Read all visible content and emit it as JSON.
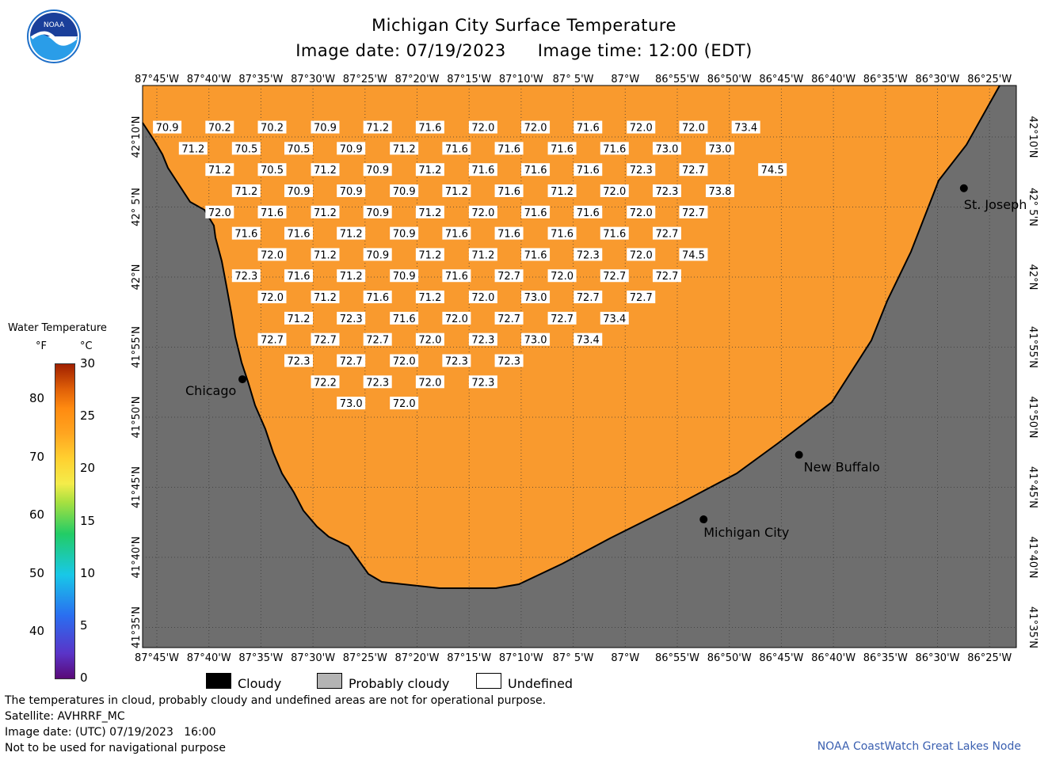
{
  "title": "Michigan City Surface Temperature",
  "image_date": "Image date: 07/19/2023",
  "image_time": "Image time: 12:00 (EDT)",
  "logo_text": "NOAA",
  "colors": {
    "water": "#f99a2e",
    "land": "#6e6e6e",
    "frame": "#000000",
    "cloudy": "#000000",
    "probably_cloudy": "#b4b4b4",
    "undefined": "#ffffff",
    "credit": "#3a5fb0"
  },
  "lon_labels": [
    "87°45'W",
    "87°40'W",
    "87°35'W",
    "87°30'W",
    "87°25'W",
    "87°20'W",
    "87°15'W",
    "87°10'W",
    "87° 5'W",
    "87°W",
    "86°55'W",
    "86°50'W",
    "86°45'W",
    "86°40'W",
    "86°35'W",
    "86°30'W",
    "86°25'W"
  ],
  "lat_labels": [
    "42°10'N",
    "42° 5'N",
    "42°N",
    "41°55'N",
    "41°50'N",
    "41°45'N",
    "41°40'N",
    "41°35'N"
  ],
  "cities": [
    {
      "name": "Chicago",
      "lon": -87.625,
      "lat": 41.883
    },
    {
      "name": "St. Joseph",
      "lon": -86.483,
      "lat": 42.108
    },
    {
      "name": "New Buffalo",
      "lon": -86.744,
      "lat": 41.794
    },
    {
      "name": "Michigan City",
      "lon": -86.895,
      "lat": 41.718
    }
  ],
  "temperatures": [
    {
      "lon": -87.744,
      "lat": 42.18,
      "value": "70.9"
    },
    {
      "lon": -87.661,
      "lat": 42.18,
      "value": "70.2"
    },
    {
      "lon": -87.578,
      "lat": 42.18,
      "value": "70.2"
    },
    {
      "lon": -87.494,
      "lat": 42.18,
      "value": "70.9"
    },
    {
      "lon": -87.411,
      "lat": 42.18,
      "value": "71.2"
    },
    {
      "lon": -87.328,
      "lat": 42.18,
      "value": "71.6"
    },
    {
      "lon": -87.244,
      "lat": 42.18,
      "value": "72.0"
    },
    {
      "lon": -87.161,
      "lat": 42.18,
      "value": "72.0"
    },
    {
      "lon": -87.078,
      "lat": 42.18,
      "value": "71.6"
    },
    {
      "lon": -86.994,
      "lat": 42.18,
      "value": "72.0"
    },
    {
      "lon": -86.911,
      "lat": 42.18,
      "value": "72.0"
    },
    {
      "lon": -86.828,
      "lat": 42.18,
      "value": "73.4"
    },
    {
      "lon": -87.703,
      "lat": 42.155,
      "value": "71.2"
    },
    {
      "lon": -87.619,
      "lat": 42.155,
      "value": "70.5"
    },
    {
      "lon": -87.536,
      "lat": 42.155,
      "value": "70.5"
    },
    {
      "lon": -87.453,
      "lat": 42.155,
      "value": "70.9"
    },
    {
      "lon": -87.369,
      "lat": 42.155,
      "value": "71.2"
    },
    {
      "lon": -87.286,
      "lat": 42.155,
      "value": "71.6"
    },
    {
      "lon": -87.203,
      "lat": 42.155,
      "value": "71.6"
    },
    {
      "lon": -87.119,
      "lat": 42.155,
      "value": "71.6"
    },
    {
      "lon": -87.036,
      "lat": 42.155,
      "value": "71.6"
    },
    {
      "lon": -86.953,
      "lat": 42.155,
      "value": "73.0"
    },
    {
      "lon": -86.869,
      "lat": 42.155,
      "value": "73.0"
    },
    {
      "lon": -87.661,
      "lat": 42.13,
      "value": "71.2"
    },
    {
      "lon": -87.578,
      "lat": 42.13,
      "value": "70.5"
    },
    {
      "lon": -87.494,
      "lat": 42.13,
      "value": "71.2"
    },
    {
      "lon": -87.411,
      "lat": 42.13,
      "value": "70.9"
    },
    {
      "lon": -87.328,
      "lat": 42.13,
      "value": "71.2"
    },
    {
      "lon": -87.244,
      "lat": 42.13,
      "value": "71.6"
    },
    {
      "lon": -87.161,
      "lat": 42.13,
      "value": "71.6"
    },
    {
      "lon": -87.078,
      "lat": 42.13,
      "value": "71.6"
    },
    {
      "lon": -86.994,
      "lat": 42.13,
      "value": "72.3"
    },
    {
      "lon": -86.911,
      "lat": 42.13,
      "value": "72.7"
    },
    {
      "lon": -86.786,
      "lat": 42.13,
      "value": "74.5"
    },
    {
      "lon": -87.619,
      "lat": 42.105,
      "value": "71.2"
    },
    {
      "lon": -87.536,
      "lat": 42.105,
      "value": "70.9"
    },
    {
      "lon": -87.453,
      "lat": 42.105,
      "value": "70.9"
    },
    {
      "lon": -87.369,
      "lat": 42.105,
      "value": "70.9"
    },
    {
      "lon": -87.286,
      "lat": 42.105,
      "value": "71.2"
    },
    {
      "lon": -87.203,
      "lat": 42.105,
      "value": "71.6"
    },
    {
      "lon": -87.119,
      "lat": 42.105,
      "value": "71.2"
    },
    {
      "lon": -87.036,
      "lat": 42.105,
      "value": "72.0"
    },
    {
      "lon": -86.953,
      "lat": 42.105,
      "value": "72.3"
    },
    {
      "lon": -86.869,
      "lat": 42.105,
      "value": "73.8"
    },
    {
      "lon": -87.661,
      "lat": 42.08,
      "value": "72.0"
    },
    {
      "lon": -87.578,
      "lat": 42.08,
      "value": "71.6"
    },
    {
      "lon": -87.494,
      "lat": 42.08,
      "value": "71.2"
    },
    {
      "lon": -87.411,
      "lat": 42.08,
      "value": "70.9"
    },
    {
      "lon": -87.328,
      "lat": 42.08,
      "value": "71.2"
    },
    {
      "lon": -87.244,
      "lat": 42.08,
      "value": "72.0"
    },
    {
      "lon": -87.161,
      "lat": 42.08,
      "value": "71.6"
    },
    {
      "lon": -87.078,
      "lat": 42.08,
      "value": "71.6"
    },
    {
      "lon": -86.994,
      "lat": 42.08,
      "value": "72.0"
    },
    {
      "lon": -86.911,
      "lat": 42.08,
      "value": "72.7"
    },
    {
      "lon": -87.619,
      "lat": 42.055,
      "value": "71.6"
    },
    {
      "lon": -87.536,
      "lat": 42.055,
      "value": "71.6"
    },
    {
      "lon": -87.453,
      "lat": 42.055,
      "value": "71.2"
    },
    {
      "lon": -87.369,
      "lat": 42.055,
      "value": "70.9"
    },
    {
      "lon": -87.286,
      "lat": 42.055,
      "value": "71.6"
    },
    {
      "lon": -87.203,
      "lat": 42.055,
      "value": "71.6"
    },
    {
      "lon": -87.119,
      "lat": 42.055,
      "value": "71.6"
    },
    {
      "lon": -87.036,
      "lat": 42.055,
      "value": "71.6"
    },
    {
      "lon": -86.953,
      "lat": 42.055,
      "value": "72.7"
    },
    {
      "lon": -87.578,
      "lat": 42.03,
      "value": "72.0"
    },
    {
      "lon": -87.494,
      "lat": 42.03,
      "value": "71.2"
    },
    {
      "lon": -87.411,
      "lat": 42.03,
      "value": "70.9"
    },
    {
      "lon": -87.328,
      "lat": 42.03,
      "value": "71.2"
    },
    {
      "lon": -87.244,
      "lat": 42.03,
      "value": "71.2"
    },
    {
      "lon": -87.161,
      "lat": 42.03,
      "value": "71.6"
    },
    {
      "lon": -87.078,
      "lat": 42.03,
      "value": "72.3"
    },
    {
      "lon": -86.994,
      "lat": 42.03,
      "value": "72.0"
    },
    {
      "lon": -86.911,
      "lat": 42.03,
      "value": "74.5"
    },
    {
      "lon": -87.619,
      "lat": 42.005,
      "value": "72.3"
    },
    {
      "lon": -87.536,
      "lat": 42.005,
      "value": "71.6"
    },
    {
      "lon": -87.453,
      "lat": 42.005,
      "value": "71.2"
    },
    {
      "lon": -87.369,
      "lat": 42.005,
      "value": "70.9"
    },
    {
      "lon": -87.286,
      "lat": 42.005,
      "value": "71.6"
    },
    {
      "lon": -87.203,
      "lat": 42.005,
      "value": "72.7"
    },
    {
      "lon": -87.119,
      "lat": 42.005,
      "value": "72.0"
    },
    {
      "lon": -87.036,
      "lat": 42.005,
      "value": "72.7"
    },
    {
      "lon": -86.953,
      "lat": 42.005,
      "value": "72.7"
    },
    {
      "lon": -87.578,
      "lat": 41.98,
      "value": "72.0"
    },
    {
      "lon": -87.494,
      "lat": 41.98,
      "value": "71.2"
    },
    {
      "lon": -87.411,
      "lat": 41.98,
      "value": "71.6"
    },
    {
      "lon": -87.328,
      "lat": 41.98,
      "value": "71.2"
    },
    {
      "lon": -87.244,
      "lat": 41.98,
      "value": "72.0"
    },
    {
      "lon": -87.161,
      "lat": 41.98,
      "value": "73.0"
    },
    {
      "lon": -87.078,
      "lat": 41.98,
      "value": "72.7"
    },
    {
      "lon": -86.994,
      "lat": 41.98,
      "value": "72.7"
    },
    {
      "lon": -87.536,
      "lat": 41.955,
      "value": "71.2"
    },
    {
      "lon": -87.453,
      "lat": 41.955,
      "value": "72.3"
    },
    {
      "lon": -87.369,
      "lat": 41.955,
      "value": "71.6"
    },
    {
      "lon": -87.286,
      "lat": 41.955,
      "value": "72.0"
    },
    {
      "lon": -87.203,
      "lat": 41.955,
      "value": "72.7"
    },
    {
      "lon": -87.119,
      "lat": 41.955,
      "value": "72.7"
    },
    {
      "lon": -87.036,
      "lat": 41.955,
      "value": "73.4"
    },
    {
      "lon": -87.578,
      "lat": 41.93,
      "value": "72.7"
    },
    {
      "lon": -87.494,
      "lat": 41.93,
      "value": "72.7"
    },
    {
      "lon": -87.411,
      "lat": 41.93,
      "value": "72.7"
    },
    {
      "lon": -87.328,
      "lat": 41.93,
      "value": "72.0"
    },
    {
      "lon": -87.244,
      "lat": 41.93,
      "value": "72.3"
    },
    {
      "lon": -87.161,
      "lat": 41.93,
      "value": "73.0"
    },
    {
      "lon": -87.078,
      "lat": 41.93,
      "value": "73.4"
    },
    {
      "lon": -87.536,
      "lat": 41.905,
      "value": "72.3"
    },
    {
      "lon": -87.453,
      "lat": 41.905,
      "value": "72.7"
    },
    {
      "lon": -87.369,
      "lat": 41.905,
      "value": "72.0"
    },
    {
      "lon": -87.286,
      "lat": 41.905,
      "value": "72.3"
    },
    {
      "lon": -87.203,
      "lat": 41.905,
      "value": "72.3"
    },
    {
      "lon": -87.494,
      "lat": 41.88,
      "value": "72.2"
    },
    {
      "lon": -87.411,
      "lat": 41.88,
      "value": "72.3"
    },
    {
      "lon": -87.328,
      "lat": 41.88,
      "value": "72.0"
    },
    {
      "lon": -87.244,
      "lat": 41.88,
      "value": "72.3"
    },
    {
      "lon": -87.453,
      "lat": 41.855,
      "value": "73.0"
    },
    {
      "lon": -87.369,
      "lat": 41.855,
      "value": "72.0"
    }
  ],
  "colorbar": {
    "title": "Water Temperature",
    "unit_f": "°F",
    "unit_c": "°C",
    "f_ticks": [
      "80",
      "70",
      "60",
      "50",
      "40"
    ],
    "c_ticks": [
      "30",
      "25",
      "20",
      "15",
      "10",
      "5",
      "0"
    ]
  },
  "legend": [
    "Cloudy",
    "Probably cloudy",
    "Undefined"
  ],
  "footer": {
    "line1": "The temperatures in cloud, probably cloudy and undefined areas are not for operational purpose.",
    "line2": "Satellite: AVHRRF_MC",
    "line3": "Image date: (UTC) 07/19/2023   16:00",
    "line4": "Not to be used for navigational purpose",
    "credit": "NOAA CoastWatch Great Lakes Node"
  }
}
